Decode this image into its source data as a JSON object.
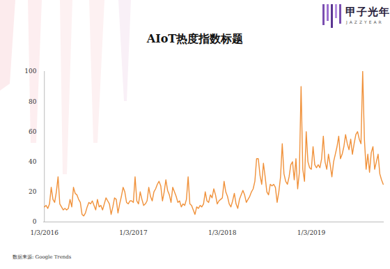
{
  "chart_data": {
    "type": "line",
    "title": "AIoT热度指数标题",
    "source": "数据来源: Google Trends",
    "brand": "甲子光年",
    "brand_en": "JAZZYEAR",
    "color": "#f0913a",
    "grid": false,
    "ylim": [
      0,
      100
    ],
    "yticks": [
      0,
      20,
      40,
      60,
      80,
      100
    ],
    "categories": [
      "1/3/2016",
      null,
      null,
      null,
      null,
      null,
      null,
      null,
      null,
      null,
      null,
      null,
      null,
      null,
      null,
      null,
      null,
      null,
      null,
      null,
      null,
      null,
      null,
      null,
      null,
      null,
      null,
      null,
      null,
      null,
      null,
      null,
      null,
      null,
      null,
      null,
      null,
      null,
      null,
      null,
      null,
      null,
      null,
      null,
      null,
      null,
      null,
      null,
      null,
      null,
      null,
      null,
      "1/3/2017",
      null,
      null,
      null,
      null,
      null,
      null,
      null,
      null,
      null,
      null,
      null,
      null,
      null,
      null,
      null,
      null,
      null,
      null,
      null,
      null,
      null,
      null,
      null,
      null,
      null,
      null,
      null,
      null,
      null,
      null,
      null,
      null,
      null,
      null,
      null,
      null,
      null,
      null,
      null,
      null,
      null,
      null,
      null,
      null,
      null,
      null,
      null,
      null,
      null,
      null,
      null,
      "1/3/2018",
      null,
      null,
      null,
      null,
      null,
      null,
      null,
      null,
      null,
      null,
      null,
      null,
      null,
      null,
      null,
      null,
      null,
      null,
      null,
      null,
      null,
      null,
      null,
      null,
      null,
      null,
      null,
      null,
      null,
      null,
      null,
      null,
      null,
      null,
      null,
      null,
      null,
      null,
      null,
      null,
      null,
      null,
      null,
      null,
      null,
      null,
      null,
      null,
      null,
      null,
      null,
      "1/3/2019",
      null,
      null,
      null,
      null,
      null,
      null,
      null,
      null,
      null,
      null,
      null,
      null,
      null,
      null,
      null,
      null,
      null,
      null,
      null,
      null,
      null,
      null,
      null,
      null,
      null,
      null,
      null,
      null,
      null,
      null,
      null,
      null,
      null,
      null,
      null,
      null,
      null,
      null,
      null,
      null,
      null,
      null
    ],
    "values": [
      10,
      11,
      9,
      12,
      23,
      15,
      13,
      20,
      30,
      12,
      10,
      8,
      9,
      8,
      9,
      15,
      10,
      23,
      19,
      18,
      15,
      13,
      5,
      4,
      6,
      10,
      13,
      12,
      14,
      11,
      8,
      15,
      10,
      11,
      8,
      12,
      16,
      14,
      12,
      5,
      10,
      16,
      15,
      6,
      12,
      17,
      23,
      20,
      13,
      12,
      14,
      14,
      13,
      30,
      14,
      12,
      20,
      15,
      11,
      12,
      14,
      23,
      17,
      14,
      20,
      22,
      25,
      27,
      24,
      14,
      20,
      28,
      21,
      18,
      13,
      23,
      20,
      17,
      13,
      14,
      10,
      12,
      11,
      15,
      30,
      12,
      11,
      8,
      5,
      10,
      9,
      11,
      10,
      12,
      20,
      14,
      13,
      18,
      16,
      22,
      18,
      12,
      14,
      15,
      16,
      27,
      20,
      17,
      12,
      10,
      14,
      19,
      12,
      9,
      15,
      18,
      21,
      18,
      13,
      15,
      17,
      20,
      22,
      27,
      42,
      42,
      31,
      25,
      39,
      30,
      20,
      18,
      25,
      24,
      25,
      23,
      13,
      20,
      30,
      52,
      32,
      27,
      25,
      30,
      38,
      40,
      28,
      42,
      22,
      33,
      90,
      35,
      27,
      60,
      40,
      36,
      35,
      50,
      38,
      36,
      38,
      36,
      42,
      57,
      40,
      35,
      45,
      38,
      30,
      40,
      45,
      50,
      57,
      42,
      45,
      50,
      58,
      52,
      48,
      55,
      45,
      52,
      58,
      60,
      55,
      52,
      100,
      55,
      35,
      45,
      33,
      46,
      50,
      35,
      40,
      45,
      32,
      28,
      25
    ]
  }
}
